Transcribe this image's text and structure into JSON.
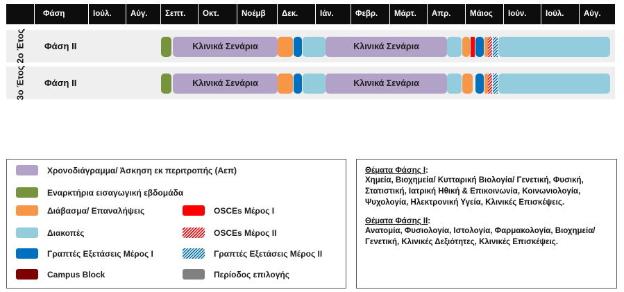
{
  "header": {
    "columns": [
      "Φάση",
      "Ιούλ.",
      "Αύγ.",
      "Σεπτ.",
      "Οκτ.",
      "Νοέμβ",
      "Δεκ.",
      "Ιάν.",
      "Φεβρ.",
      "Μάρτ.",
      "Απρ.",
      "Μάιος",
      "Ιούν.",
      "Ιούλ.",
      "Αύγ."
    ]
  },
  "rows": [
    {
      "year": "2ο Έτος",
      "phase": "Φάση ΙΙ",
      "segments": [
        {
          "label": "Κλινικά Σενάρια"
        },
        {
          "label": "Κλινικά Σενάρια"
        }
      ]
    },
    {
      "year": "3ο Έτος",
      "phase": "Φάση ΙΙ",
      "segments": [
        {
          "label": "Κλινικά Σενάρια"
        },
        {
          "label": "Κλινικά Σενάρια"
        }
      ]
    }
  ],
  "legend": {
    "items": [
      {
        "label": "Χρονοδιάγραμμα/ Άσκηση εκ περιτροπής (Αεπ)",
        "color": "#b3a2c7"
      },
      {
        "label": "Εναρκτήρια εισαγωγική εβδομάδα",
        "color": "#77933c"
      },
      {
        "label": "Διάβασμα/ Επαναλήψεις",
        "color": "#f79646"
      },
      {
        "label": "Διακοπές",
        "color": "#93cddd"
      },
      {
        "label": "Γραπτές Εξετάσεις Μέρος Ι",
        "color": "#0070c0"
      },
      {
        "label": "Campus Block",
        "color": "#7f0000"
      },
      {
        "label": "OSCEs Μέρος Ι",
        "color": "#ff0000"
      },
      {
        "label": "OSCEs Μέρος ΙΙ",
        "color": "#ff0000"
      },
      {
        "label": "Γραπτές Εξετάσεις Μέρος ΙΙ",
        "color": "#0070c0"
      },
      {
        "label": "Περίοδος επιλογής",
        "color": "#808080"
      }
    ]
  },
  "topics": {
    "phase1_title": "Θέματα Φάσης Ι",
    "phase1_text": "Χημεία, Βιοχημεία/ Κυτταρική Βιολογία/ Γενετική, Φυσική, Στατιστική, Ιατρική Ηθική & Επικοινωνία, Κοινωνιολογία, Ψυχολογία, Ηλεκτρονική Υγεία, Κλινικές Επισκέψεις.",
    "phase2_title": "Θέματα Φάσης ΙΙ",
    "phase2_text": "Ανατομία, Φυσιολογία, Ιστολογία, Φαρμακολογία, Βιοχημεία/ Γενετική, Κλινικές Δεξιότητες, Κλινικές Επισκέψεις."
  }
}
